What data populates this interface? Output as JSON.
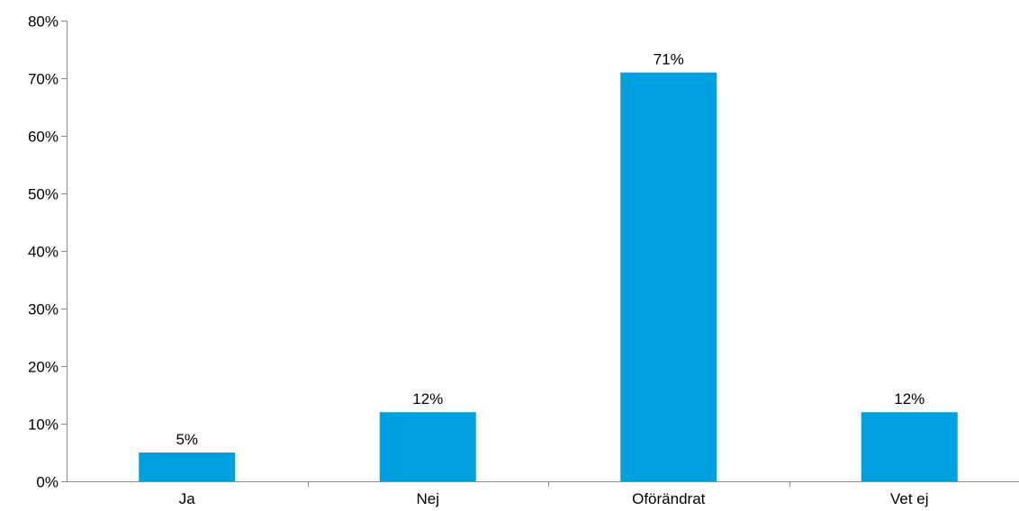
{
  "chart_data": {
    "type": "bar",
    "title": "",
    "xlabel": "",
    "ylabel": "",
    "categories": [
      "Ja",
      "Nej",
      "Oförändrat",
      "Vet ej"
    ],
    "values": [
      5,
      12,
      71,
      12
    ],
    "value_labels": [
      "5%",
      "12%",
      "71%",
      "12%"
    ],
    "y_ticks": [
      "0%",
      "10%",
      "20%",
      "30%",
      "40%",
      "50%",
      "60%",
      "70%",
      "80%"
    ],
    "ylim": [
      0,
      80
    ],
    "grid": false,
    "legend": "none",
    "bar_color": "#009fdf"
  }
}
